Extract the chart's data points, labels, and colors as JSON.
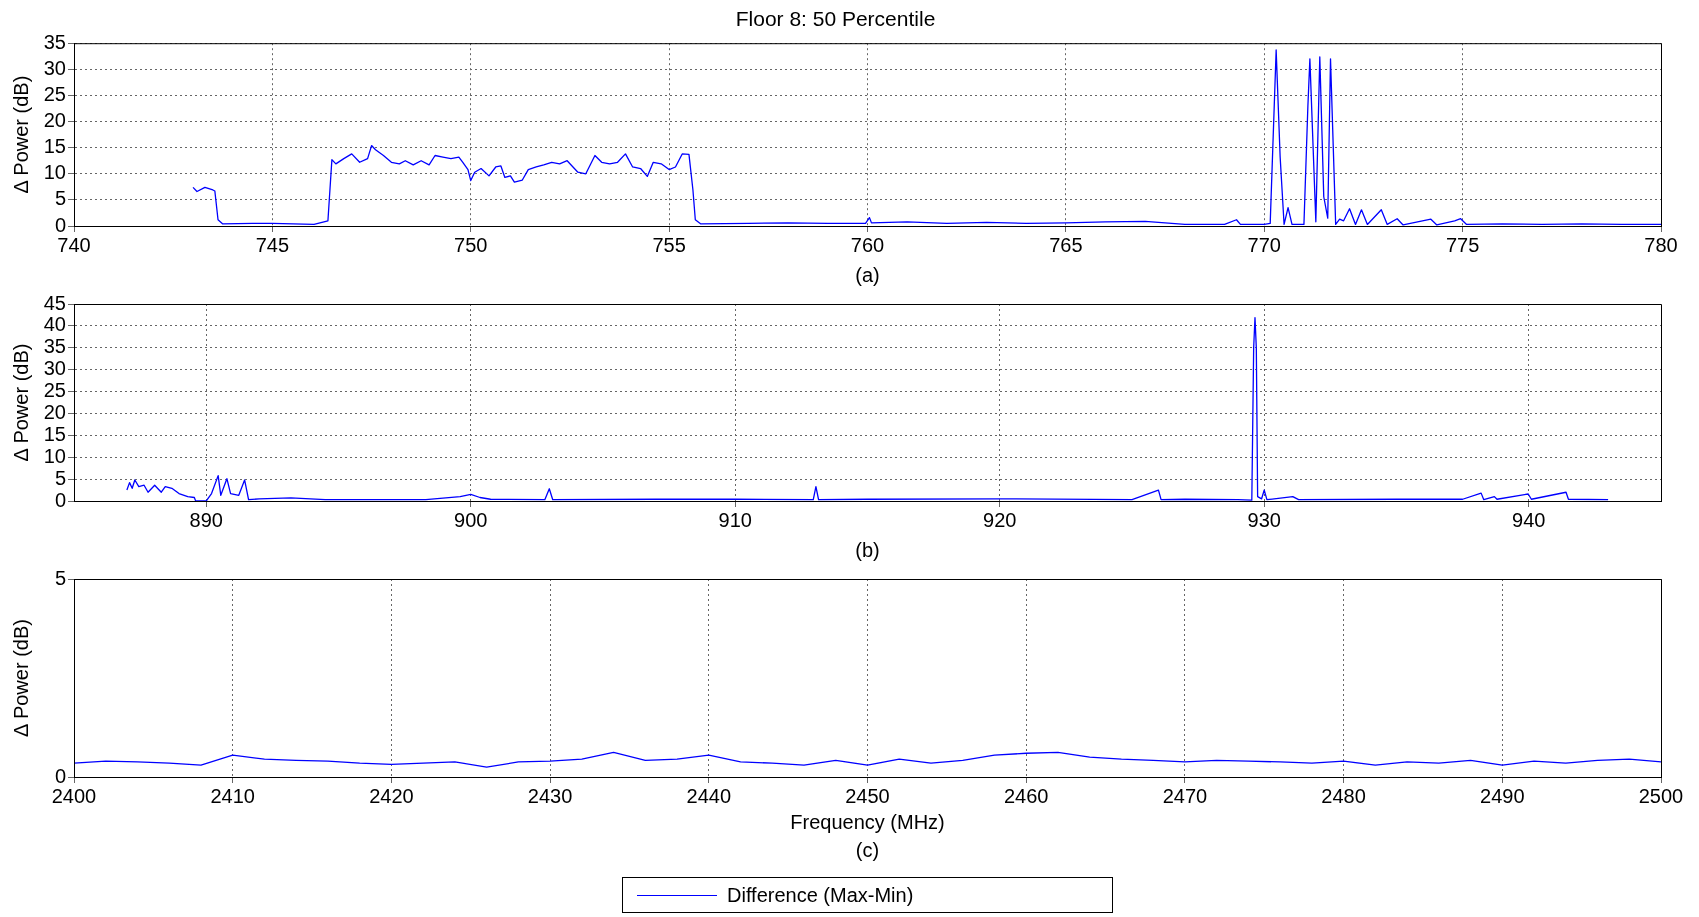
{
  "chart_data": [
    {
      "type": "line",
      "title": "Floor 8: 50 Percentile",
      "ylabel": "Δ Power (dB)",
      "annotations": [
        "(a)"
      ],
      "xlim": [
        740,
        780
      ],
      "xticks": [
        740,
        745,
        750,
        755,
        760,
        765,
        770,
        775,
        780
      ],
      "ylim": [
        0,
        35
      ],
      "yticks": [
        0,
        5,
        10,
        15,
        20,
        25,
        30,
        35
      ],
      "grid": true,
      "marker": "none",
      "line_style": "solid",
      "series": [
        {
          "color": "#0000ff",
          "x": [
            743.0,
            743.1,
            743.3,
            743.5,
            743.55,
            743.63,
            743.75,
            744.5,
            745,
            746.05,
            746.4,
            746.5,
            746.6,
            746.8,
            747,
            747.2,
            747.4,
            747.5,
            747.6,
            747.8,
            748,
            748.2,
            748.35,
            748.55,
            748.75,
            748.95,
            749.1,
            749.3,
            749.5,
            749.7,
            749.8,
            749.93,
            750,
            750.1,
            750.26,
            750.46,
            750.63,
            750.76,
            750.86,
            751,
            751.1,
            751.3,
            751.45,
            751.65,
            751.84,
            752.04,
            752.24,
            752.43,
            752.7,
            752.9,
            753.13,
            753.3,
            753.5,
            753.7,
            753.9,
            754.08,
            754.28,
            754.45,
            754.6,
            754.8,
            755,
            755.16,
            755.33,
            755.5,
            755.6,
            755.66,
            755.8,
            757,
            758,
            759,
            759.95,
            760.05,
            760.1,
            761,
            762,
            763,
            764,
            765,
            766,
            767,
            767.5,
            768,
            769,
            769.3,
            769.4,
            770,
            770.15,
            770.3,
            770.4,
            770.5,
            770.6,
            770.7,
            771.0,
            771.1,
            771.15,
            771.3,
            771.4,
            771.5,
            771.6,
            771.67,
            771.8,
            771.9,
            772.0,
            772.15,
            772.3,
            772.45,
            772.6,
            772.95,
            773.1,
            773.35,
            773.5,
            774.2,
            774.35,
            774.8,
            774.95,
            775.1,
            776,
            777,
            778,
            779,
            780
          ],
          "values": [
            7.4,
            6.6,
            7.4,
            6.9,
            6.7,
            1.2,
            0.4,
            0.5,
            0.5,
            0.3,
            1.0,
            12.7,
            11.9,
            12.9,
            13.8,
            12.2,
            12.9,
            15.4,
            14.6,
            13.5,
            12.2,
            11.9,
            12.5,
            11.7,
            12.5,
            11.7,
            13.5,
            13.2,
            12.9,
            13.2,
            12.2,
            10.8,
            8.7,
            10.3,
            11,
            9.6,
            11.3,
            11.5,
            9.3,
            9.6,
            8.4,
            8.8,
            10.8,
            11.3,
            11.7,
            12.2,
            11.9,
            12.5,
            10.3,
            10,
            13.5,
            12.2,
            11.9,
            12.2,
            13.8,
            11.3,
            11,
            9.5,
            12.2,
            11.9,
            10.8,
            11.3,
            13.8,
            13.7,
            6.9,
            1.2,
            0.4,
            0.5,
            0.6,
            0.5,
            0.5,
            1.6,
            0.6,
            0.8,
            0.5,
            0.7,
            0.5,
            0.6,
            0.8,
            0.9,
            0.6,
            0.3,
            0.3,
            1.2,
            0.3,
            0.3,
            0.5,
            33.7,
            13.3,
            0.3,
            3.5,
            0.3,
            0.3,
            23,
            32,
            0.8,
            32.4,
            5.6,
            1.5,
            32,
            0.3,
            1.3,
            1,
            3.3,
            0.3,
            3.1,
            0.3,
            3.1,
            0.3,
            1.4,
            0.2,
            1.3,
            0.2,
            1,
            1.4,
            0.3,
            0.4,
            0.3,
            0.4,
            0.3,
            0.3
          ]
        }
      ]
    },
    {
      "type": "line",
      "ylabel": "Δ Power (dB)",
      "annotations": [
        "(b)"
      ],
      "xlim": [
        885,
        945
      ],
      "xticks": [
        890,
        900,
        910,
        920,
        930,
        940
      ],
      "ylim": [
        0,
        45
      ],
      "yticks": [
        0,
        5,
        10,
        15,
        20,
        25,
        30,
        35,
        40,
        45
      ],
      "grid": true,
      "marker": "none",
      "line_style": "solid",
      "series": [
        {
          "color": "#0000ff",
          "x": [
            887.0,
            887.1,
            887.2,
            887.3,
            887.45,
            887.65,
            887.8,
            888.05,
            888.3,
            888.45,
            888.7,
            888.97,
            889.3,
            889.55,
            889.6,
            890,
            890.2,
            890.45,
            890.55,
            890.78,
            890.92,
            891.23,
            891.45,
            891.6,
            892,
            893.2,
            894.5,
            898.3,
            899.6,
            900,
            900.35,
            900.75,
            902.8,
            902.97,
            903.1,
            907,
            910,
            912.95,
            913.05,
            913.15,
            915,
            920,
            925,
            926.0,
            926.1,
            927,
            929,
            929.53,
            929.6,
            929.65,
            929.7,
            929.75,
            929.9,
            930.0,
            930.1,
            931.08,
            931.3,
            935,
            937.5,
            938.2,
            938.3,
            938.7,
            938.8,
            939.98,
            940.1,
            941.41,
            941.5,
            943.0
          ],
          "values": [
            2.5,
            4.2,
            2.9,
            4.8,
            3.3,
            3.6,
            2,
            3.6,
            2,
            3.3,
            2.9,
            1.7,
            1,
            0.8,
            0,
            0,
            1.7,
            5.8,
            1.3,
            5.1,
            1.7,
            1.3,
            4.8,
            0.3,
            0.5,
            0.7,
            0.3,
            0.3,
            1,
            1.5,
            0.8,
            0.4,
            0.3,
            2.8,
            0.3,
            0.4,
            0.4,
            0.3,
            3.3,
            0.3,
            0.4,
            0.5,
            0.3,
            2.5,
            0.3,
            0.4,
            0.3,
            0.2,
            35,
            41.9,
            35,
            1,
            0.5,
            2.5,
            0.3,
            1,
            0.3,
            0.4,
            0.4,
            1.8,
            0.3,
            1,
            0.4,
            1.6,
            0.4,
            2,
            0.4,
            0.3
          ]
        }
      ]
    },
    {
      "type": "line",
      "ylabel": "Δ Power (dB)",
      "xlabel": "Frequency (MHz)",
      "annotations": [
        "(c)"
      ],
      "xlim": [
        2400,
        2500
      ],
      "xticks": [
        2400,
        2410,
        2420,
        2430,
        2440,
        2450,
        2460,
        2470,
        2480,
        2490,
        2500
      ],
      "ylim": [
        0,
        5
      ],
      "yticks": [
        0,
        5
      ],
      "grid": true,
      "legend": "bottom",
      "marker": "none",
      "line_style": "solid",
      "series": [
        {
          "name": "Difference (Max-Min)",
          "color": "#0000ff",
          "x": [
            2400,
            2402,
            2404,
            2406,
            2408,
            2410,
            2412,
            2414,
            2416,
            2418,
            2420,
            2422,
            2424,
            2426,
            2428,
            2430,
            2432,
            2434,
            2436,
            2438,
            2440,
            2442,
            2444,
            2446,
            2448,
            2450,
            2452,
            2454,
            2456,
            2458,
            2460,
            2462,
            2464,
            2466,
            2468,
            2470,
            2472,
            2474,
            2476,
            2478,
            2480,
            2482,
            2484,
            2486,
            2488,
            2490,
            2492,
            2494,
            2496,
            2498,
            2500
          ],
          "values": [
            0.35,
            0.4,
            0.38,
            0.35,
            0.3,
            0.55,
            0.45,
            0.42,
            0.4,
            0.35,
            0.32,
            0.35,
            0.38,
            0.25,
            0.38,
            0.4,
            0.45,
            0.62,
            0.42,
            0.45,
            0.55,
            0.38,
            0.35,
            0.3,
            0.42,
            0.3,
            0.45,
            0.35,
            0.42,
            0.55,
            0.6,
            0.62,
            0.5,
            0.45,
            0.42,
            0.38,
            0.42,
            0.4,
            0.38,
            0.35,
            0.4,
            0.3,
            0.38,
            0.35,
            0.42,
            0.3,
            0.4,
            0.35,
            0.42,
            0.45,
            0.38
          ]
        }
      ]
    }
  ]
}
